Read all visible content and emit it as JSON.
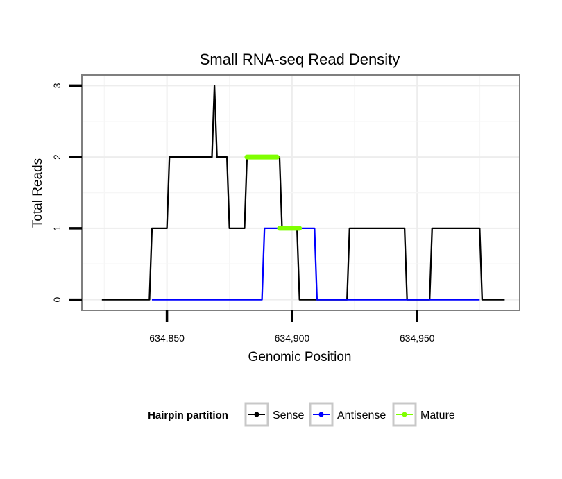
{
  "chart_data": {
    "type": "line",
    "title": "Small RNA-seq Read Density",
    "xlabel": "Genomic Position",
    "ylabel": "Total Reads",
    "xlim": [
      634816,
      634991
    ],
    "ylim": [
      -0.15,
      3.15
    ],
    "x_ticks": [
      634850,
      634900,
      634950
    ],
    "x_tick_labels": [
      "634,850",
      "634,900",
      "634,950"
    ],
    "y_ticks": [
      0,
      1,
      2,
      3
    ],
    "y_tick_labels": [
      "0",
      "1",
      "2",
      "3"
    ],
    "legend_title": "Hairpin partition",
    "legend_position": "bottom",
    "series": [
      {
        "name": "Sense",
        "color": "#000000",
        "x": [
          634824,
          634843,
          634844,
          634850,
          634851,
          634868,
          634869,
          634870,
          634871,
          634874,
          634875,
          634881,
          634882,
          634895,
          634896,
          634902,
          634903,
          634911,
          634922,
          634923,
          634945,
          634946,
          634955,
          634956,
          634975,
          634976,
          634985
        ],
        "y": [
          0,
          0,
          1,
          1,
          2,
          2,
          3,
          2,
          2,
          2,
          1,
          1,
          2,
          2,
          1,
          1,
          0,
          0,
          0,
          1,
          1,
          0,
          0,
          1,
          1,
          0,
          0
        ]
      },
      {
        "name": "Antisense",
        "color": "#0000ff",
        "x": [
          634844,
          634888,
          634889,
          634909,
          634910,
          634975
        ],
        "y": [
          0,
          0,
          1,
          1,
          0,
          0
        ]
      },
      {
        "name": "Mature",
        "color": "#7fff00",
        "segments": [
          {
            "x": [
              634882,
              634894
            ],
            "y": [
              2,
              2
            ]
          },
          {
            "x": [
              634895,
              634903
            ],
            "y": [
              1,
              1
            ]
          }
        ]
      }
    ]
  }
}
